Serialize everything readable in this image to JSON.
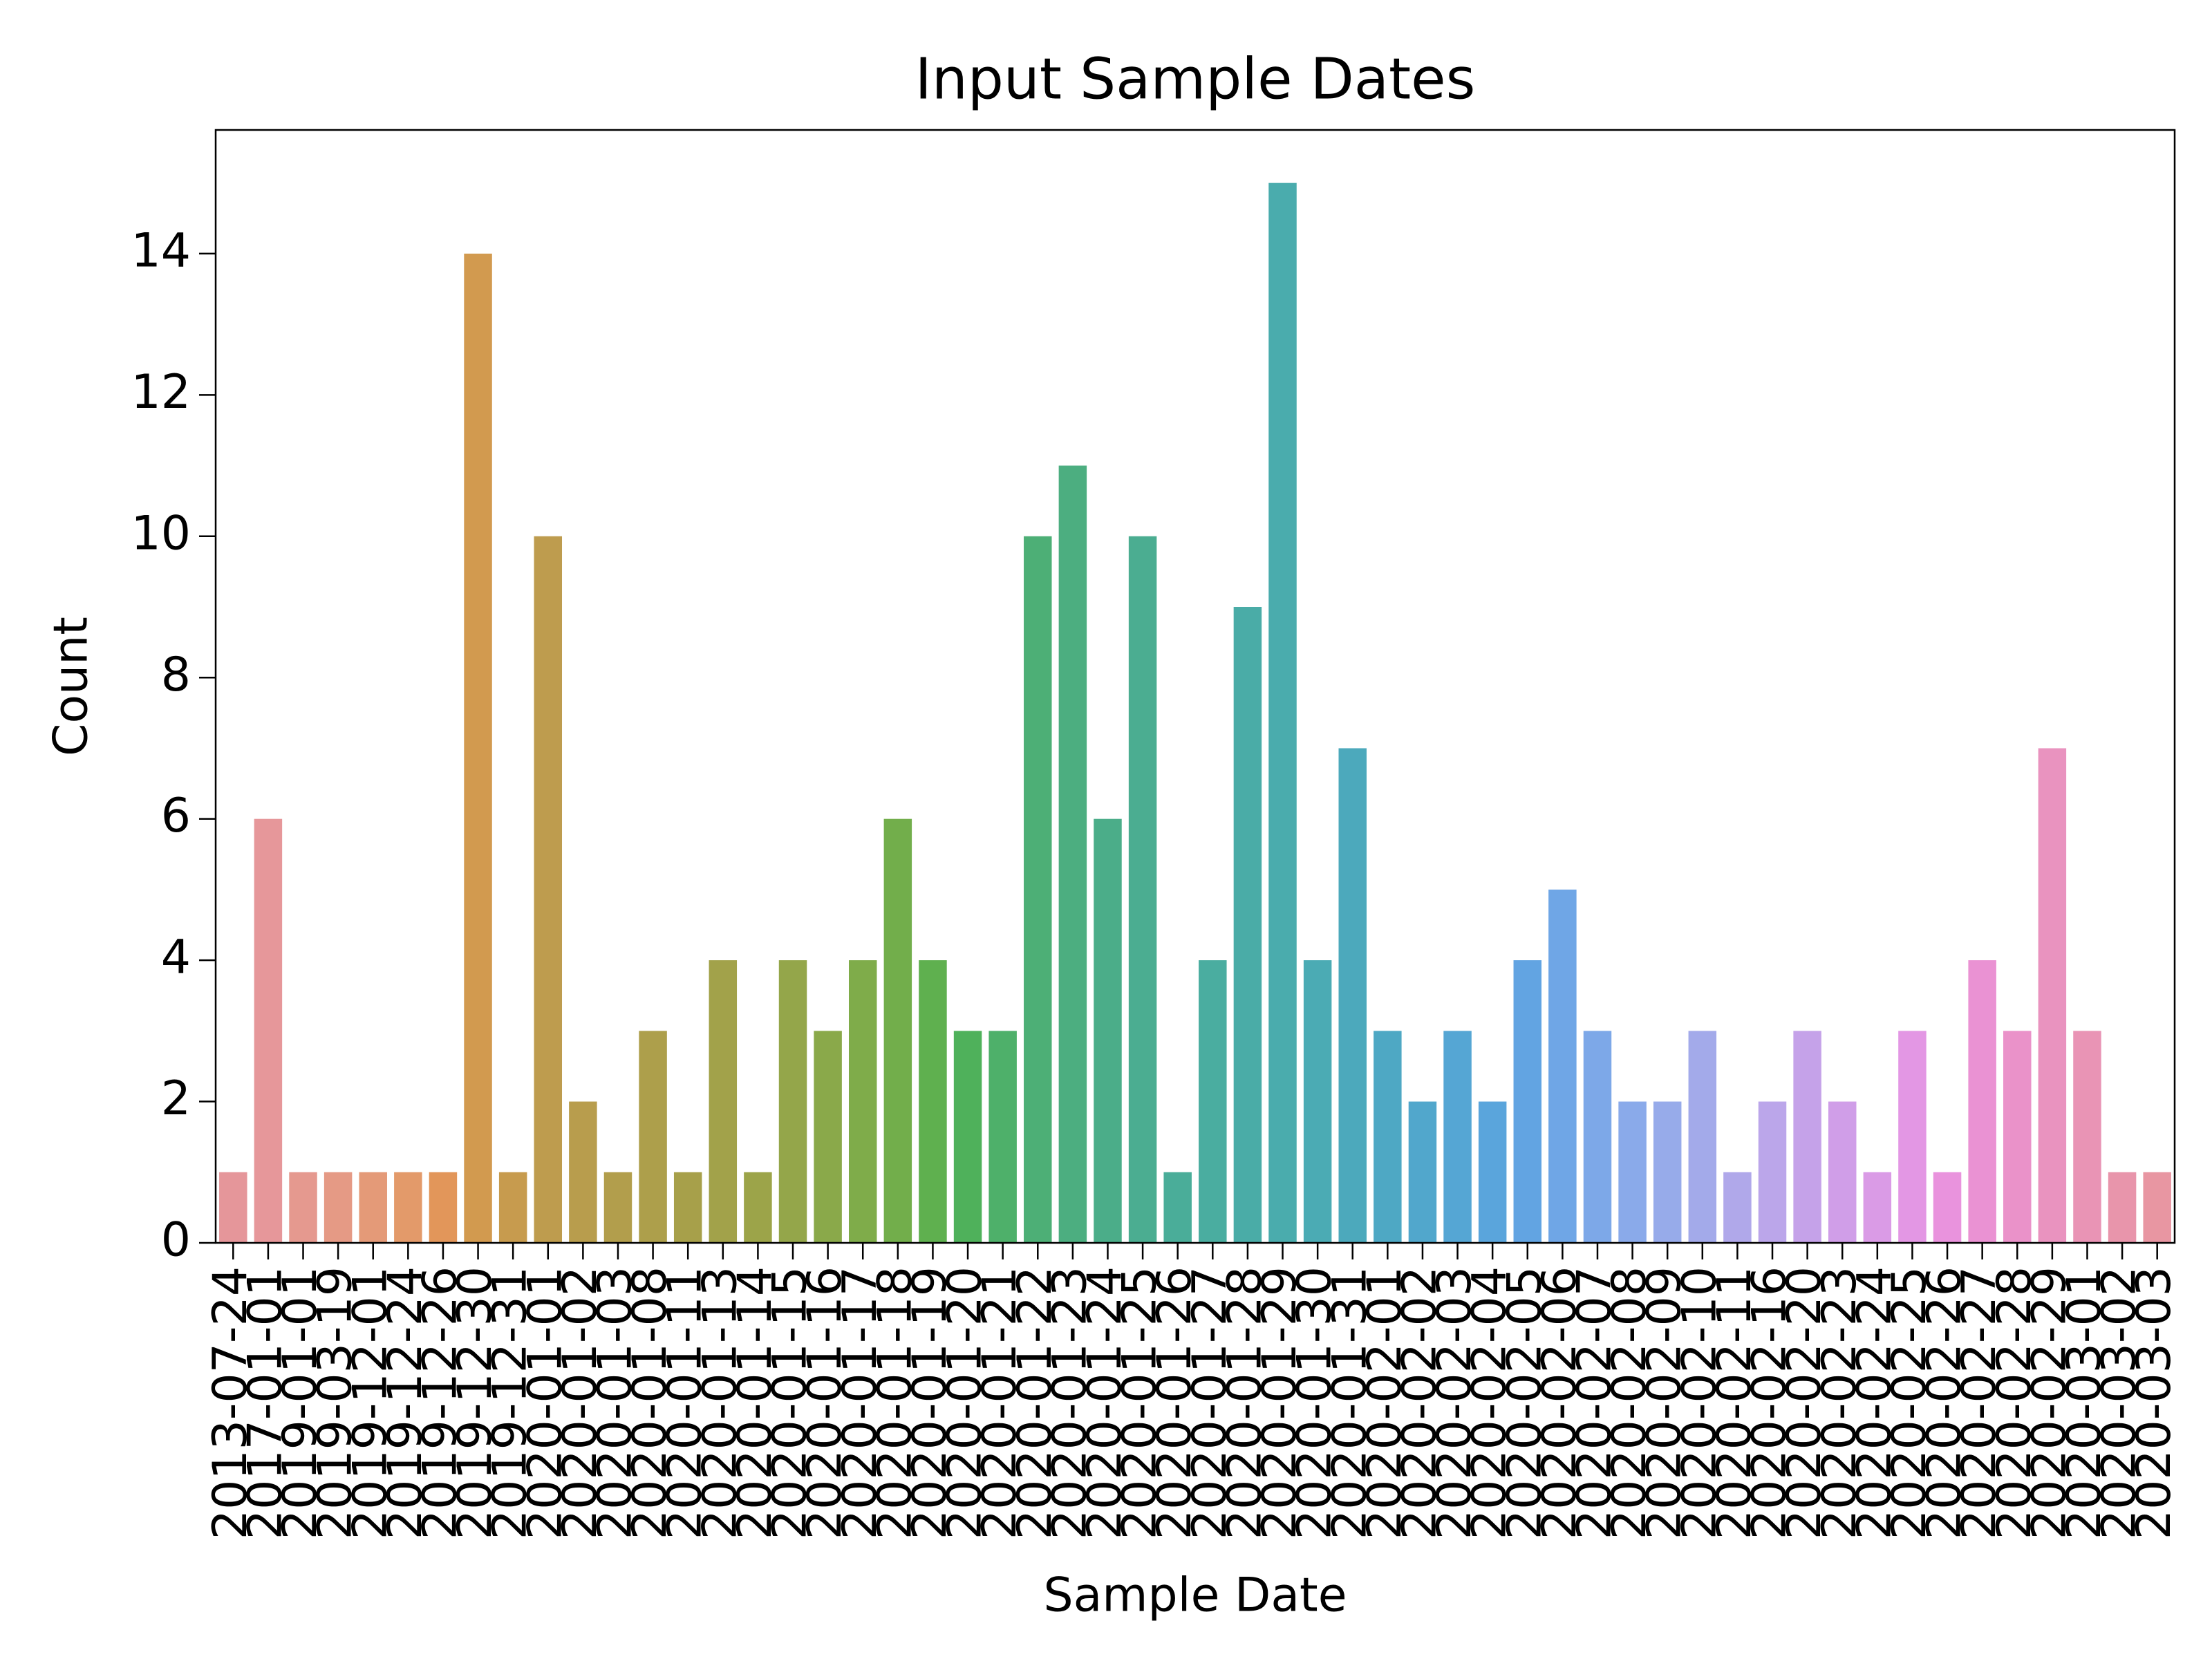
{
  "chart_data": {
    "type": "bar",
    "title": "Input Sample Dates",
    "xlabel": "Sample Date",
    "ylabel": "Count",
    "categories": [
      "2013-07-24",
      "2017-01-01",
      "2019-01-01",
      "2019-03-19",
      "2019-12-01",
      "2019-12-24",
      "2019-12-26",
      "2019-12-30",
      "2019-12-31",
      "2020-01-01",
      "2020-01-02",
      "2020-01-03",
      "2020-01-08",
      "2020-01-11",
      "2020-01-13",
      "2020-01-14",
      "2020-01-15",
      "2020-01-16",
      "2020-01-17",
      "2020-01-18",
      "2020-01-19",
      "2020-01-20",
      "2020-01-21",
      "2020-01-22",
      "2020-01-23",
      "2020-01-24",
      "2020-01-25",
      "2020-01-26",
      "2020-01-27",
      "2020-01-28",
      "2020-01-29",
      "2020-01-30",
      "2020-01-31",
      "2020-02-01",
      "2020-02-02",
      "2020-02-03",
      "2020-02-04",
      "2020-02-05",
      "2020-02-06",
      "2020-02-07",
      "2020-02-08",
      "2020-02-09",
      "2020-02-10",
      "2020-02-11",
      "2020-02-16",
      "2020-02-20",
      "2020-02-23",
      "2020-02-24",
      "2020-02-25",
      "2020-02-26",
      "2020-02-27",
      "2020-02-28",
      "2020-02-29",
      "2020-03-01",
      "2020-03-02",
      "2020-03-03"
    ],
    "values": [
      1,
      6,
      1,
      1,
      1,
      1,
      1,
      14,
      1,
      10,
      2,
      1,
      3,
      1,
      4,
      1,
      4,
      3,
      4,
      6,
      4,
      3,
      3,
      10,
      11,
      6,
      10,
      1,
      4,
      9,
      15,
      4,
      7,
      3,
      2,
      3,
      2,
      4,
      5,
      3,
      2,
      2,
      3,
      1,
      2,
      3,
      2,
      1,
      3,
      1,
      4,
      3,
      7,
      3,
      1,
      1
    ],
    "colors": [
      "#e5969a",
      "#e6979a",
      "#e5998f",
      "#e59a85",
      "#e49a78",
      "#e39a6a",
      "#e2965a",
      "#d29a4f",
      "#c79b4e",
      "#be9c4e",
      "#b89d4d",
      "#b29e4c",
      "#ad9f4b",
      "#a7a04a",
      "#a2a24a",
      "#9ca449",
      "#94a64a",
      "#8aa94a",
      "#7fac4a",
      "#72ae4b",
      "#5fb04f",
      "#4fb15b",
      "#4eb06a",
      "#4daf76",
      "#4cae80",
      "#4bad89",
      "#4bad91",
      "#4aad99",
      "#4aada0",
      "#4aaca7",
      "#4aacad",
      "#4babb4",
      "#4ca9bc",
      "#4ea8c4",
      "#51a7cc",
      "#55a6d4",
      "#5aa5dc",
      "#62a4e2",
      "#6fa6e6",
      "#7da8e8",
      "#8aaaea",
      "#97abea",
      "#a3aaea",
      "#b0a8ea",
      "#bba6ea",
      "#c5a2e9",
      "#d09ee8",
      "#da9be6",
      "#e397e4",
      "#e993dd",
      "#ea92d3",
      "#ea92c9",
      "#e993bf",
      "#e994b5",
      "#e895ab",
      "#e896a2"
    ],
    "ylim": [
      0,
      15.75
    ],
    "yticks": [
      0,
      2,
      4,
      6,
      8,
      10,
      12,
      14
    ]
  }
}
